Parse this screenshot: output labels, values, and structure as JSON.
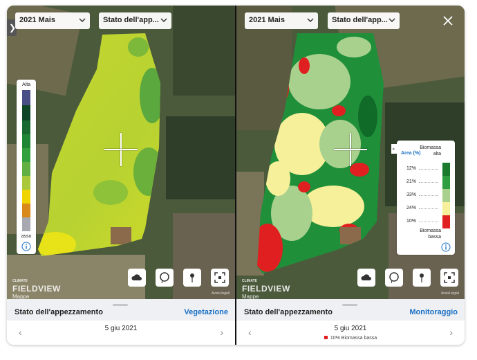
{
  "left_panel": {
    "crop_dropdown": "2021 Mais",
    "layer_dropdown": "Stato dell'app...",
    "legend": {
      "top_label": "Alta",
      "bottom_label": "asso"
    },
    "watermark_small": "CLIMATE",
    "watermark": "FIELDVIEW",
    "maps_label": "Mappe",
    "legal": "Avvisi legali",
    "bottom": {
      "title": "Stato dell'appezzamento",
      "mode": "Vegetazione",
      "date": "5 giu 2021"
    }
  },
  "right_panel": {
    "crop_dropdown": "2021 Mais",
    "layer_dropdown": "Stato dell'app...",
    "legend": {
      "header": "Area (%)",
      "top_label": "Biomassa alta",
      "rows": [
        "12%",
        "21%",
        "33%",
        "24%",
        "10%"
      ],
      "bottom_label": "Biomassa bassa"
    },
    "watermark_small": "CLIMATE",
    "watermark": "FIELDVIEW",
    "maps_label": "Mappe",
    "legal": "Avvisi legali",
    "bottom": {
      "title": "Stato dell'appezzamento",
      "mode": "Monitoraggio",
      "date": "5 giu 2021",
      "note": "10% Biomassa bassa"
    }
  }
}
